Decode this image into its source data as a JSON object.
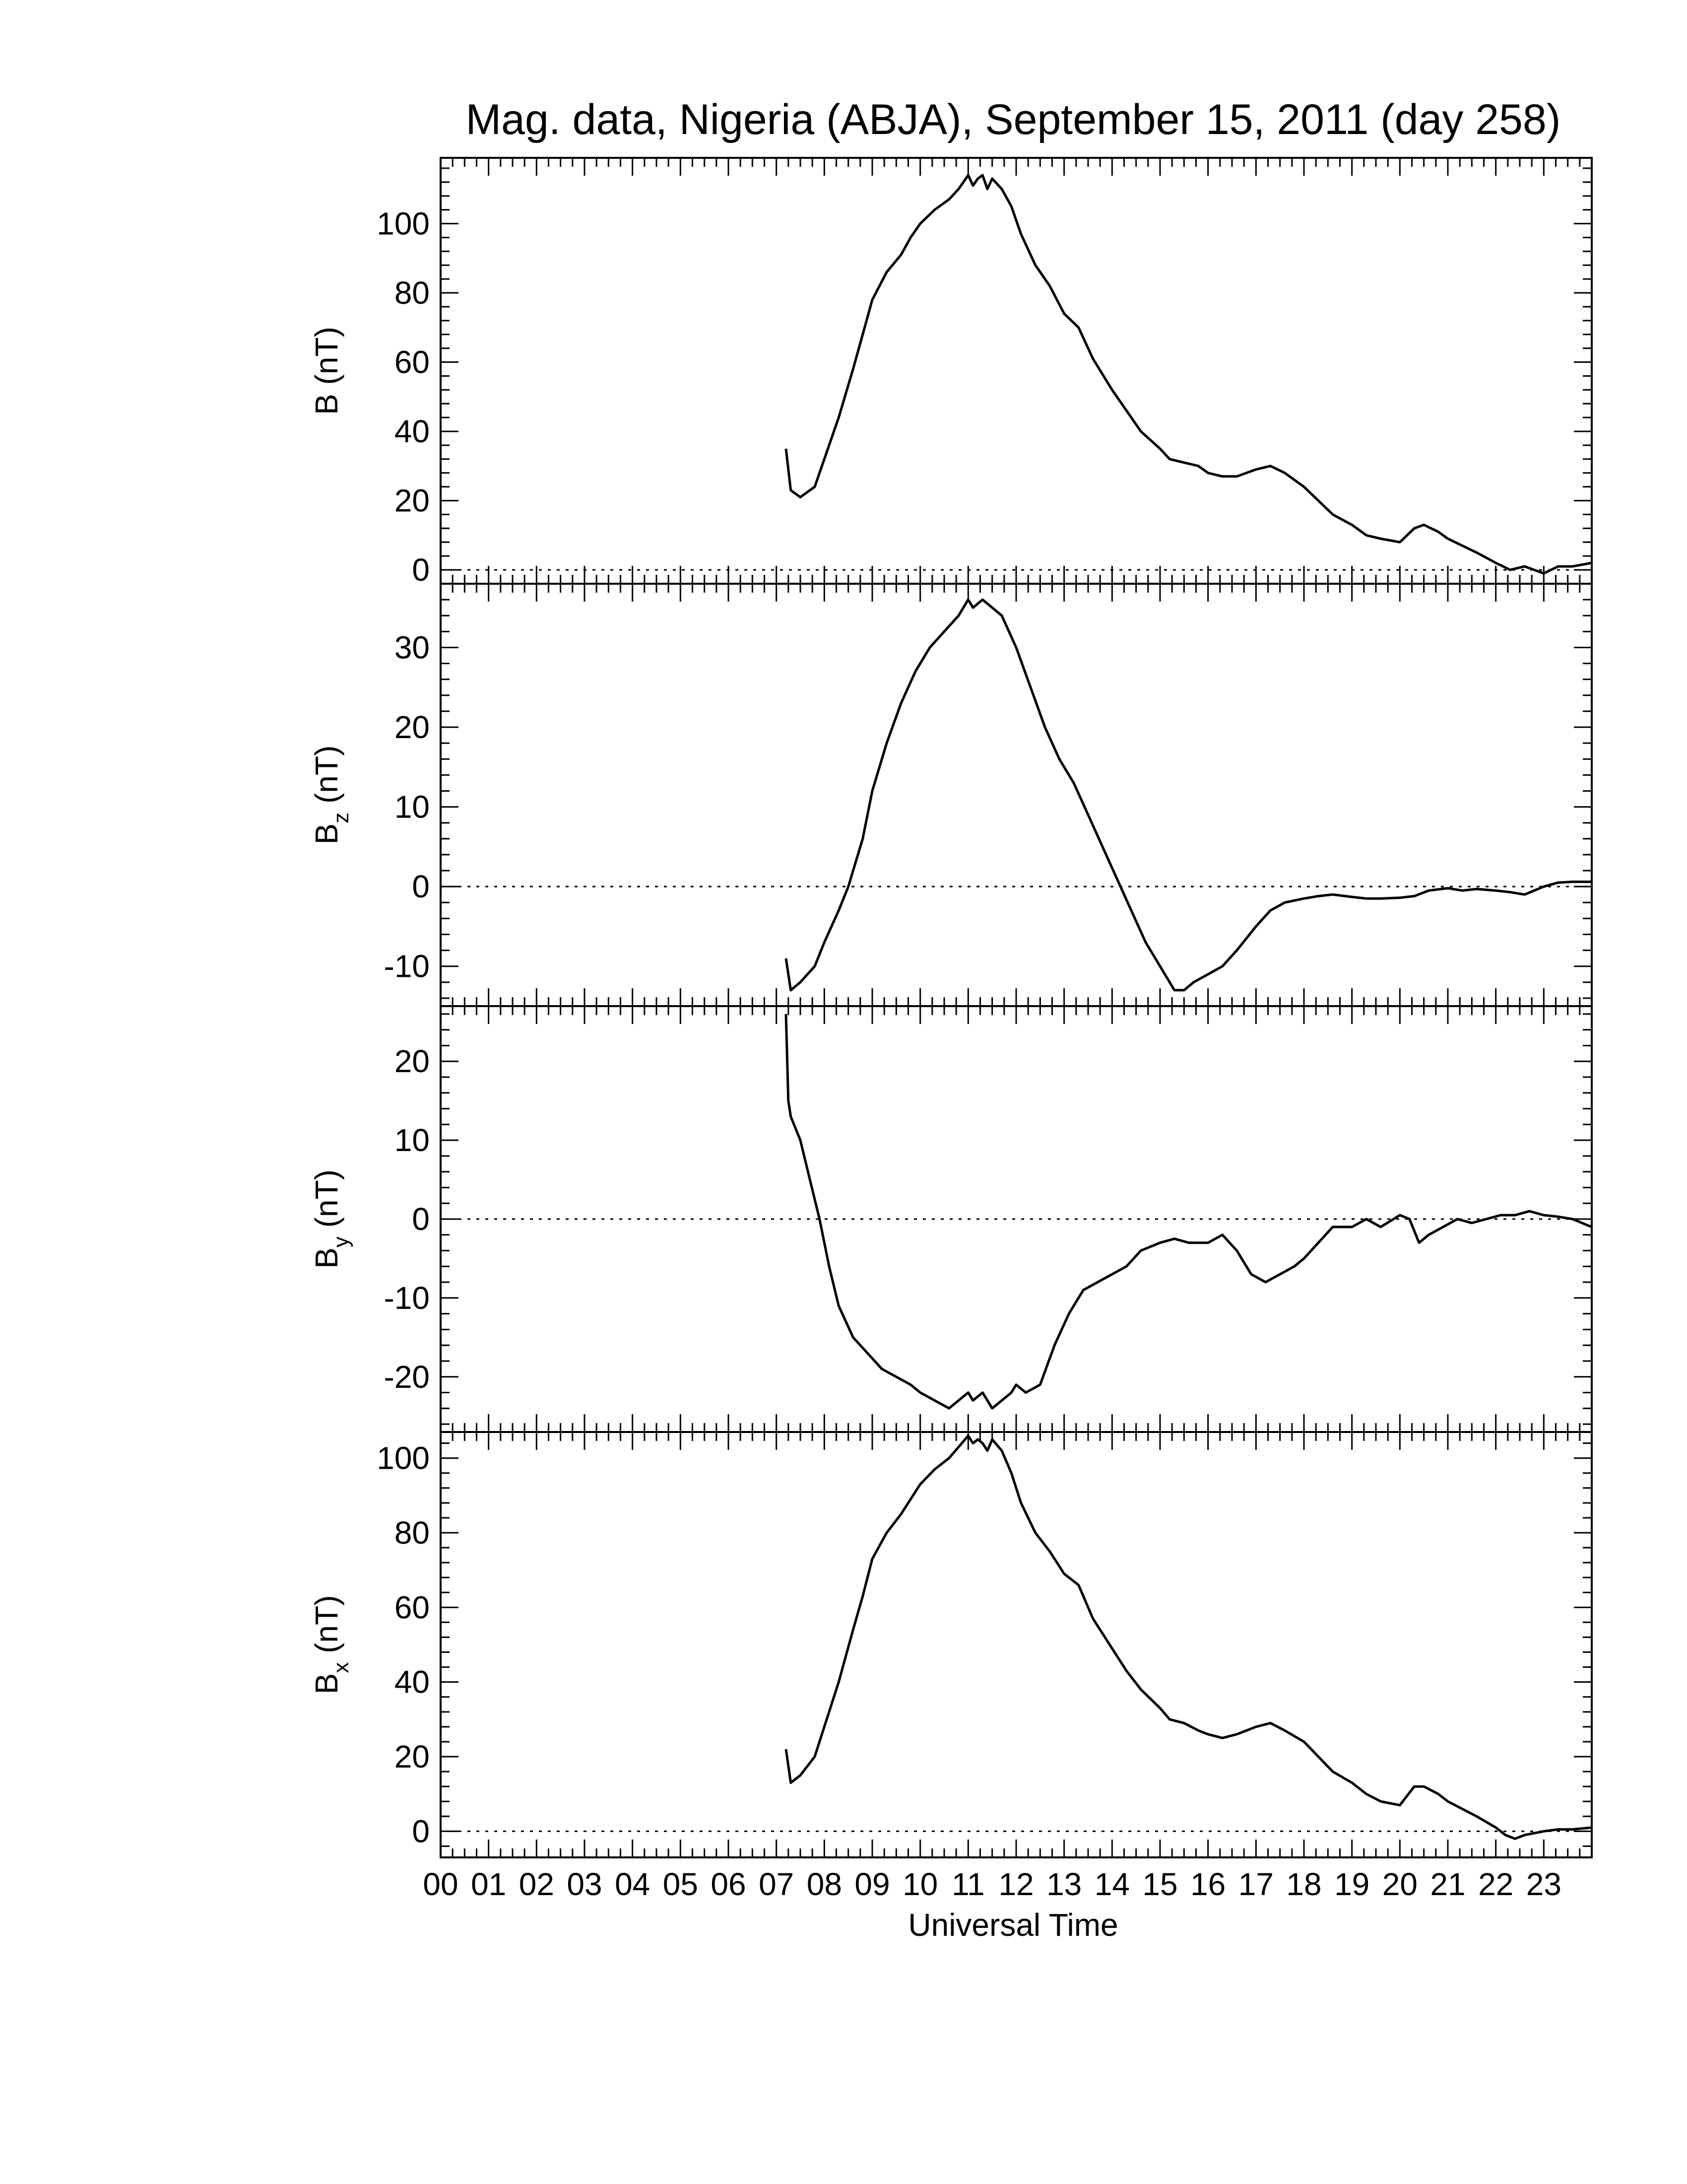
{
  "chart_data": {
    "type": "line",
    "title": "Mag. data, Nigeria (ABJA), September 15, 2011 (day 258)",
    "xlabel": "Universal Time",
    "x_tick_labels": [
      "00",
      "01",
      "02",
      "03",
      "04",
      "05",
      "06",
      "07",
      "08",
      "09",
      "10",
      "11",
      "12",
      "13",
      "14",
      "15",
      "16",
      "17",
      "18",
      "19",
      "20",
      "21",
      "22",
      "23"
    ],
    "xlim": [
      0,
      24
    ],
    "x_unit": "hours UT",
    "zero_line": "dotted",
    "line_color": "#000000",
    "panels": [
      {
        "ylabel_main": "B (nT)",
        "ylabel_sub": "",
        "ylim": [
          -4,
          119
        ],
        "y_ticks": [
          0,
          20,
          40,
          60,
          80,
          100
        ],
        "y_tick_labels": [
          "0",
          "20",
          "40",
          "60",
          "80",
          "100"
        ],
        "series": [
          {
            "x": [
              7.2,
              7.3,
              7.5,
              7.8,
              8.0,
              8.3,
              8.6,
              8.8,
              9.0,
              9.3,
              9.6,
              9.8,
              10.0,
              10.3,
              10.6,
              10.8,
              11.0,
              11.1,
              11.2,
              11.3,
              11.4,
              11.5,
              11.7,
              11.9,
              12.1,
              12.4,
              12.7,
              13.0,
              13.3,
              13.6,
              14.0,
              14.3,
              14.6,
              15.0,
              15.2,
              15.5,
              15.8,
              16.0,
              16.3,
              16.6,
              17.0,
              17.3,
              17.6,
              18.0,
              18.3,
              18.6,
              19.0,
              19.3,
              19.6,
              20.0,
              20.3,
              20.5,
              20.8,
              21.0,
              21.3,
              21.6,
              22.0,
              22.3,
              22.6,
              23.0,
              23.3,
              23.6,
              24.0
            ],
            "y": [
              35,
              23,
              21,
              24,
              32,
              44,
              58,
              68,
              78,
              86,
              91,
              96,
              100,
              104,
              107,
              110,
              114,
              111,
              113,
              114,
              110,
              113,
              110,
              105,
              97,
              88,
              82,
              74,
              70,
              61,
              52,
              46,
              40,
              35,
              32,
              31,
              30,
              28,
              27,
              27,
              29,
              30,
              28,
              24,
              20,
              16,
              13,
              10,
              9,
              8,
              12,
              13,
              11,
              9,
              7,
              5,
              2,
              0,
              1,
              -1,
              1,
              1,
              2
            ]
          }
        ]
      },
      {
        "ylabel_main": "B",
        "ylabel_sub": "z",
        "ylabel_unit": " (nT)",
        "ylim": [
          -15,
          38
        ],
        "y_ticks": [
          -10,
          0,
          10,
          20,
          30
        ],
        "y_tick_labels": [
          "-10",
          "0",
          "10",
          "20",
          "30"
        ],
        "series": [
          {
            "x": [
              7.2,
              7.3,
              7.5,
              7.8,
              8.0,
              8.3,
              8.5,
              8.8,
              9.0,
              9.3,
              9.6,
              9.9,
              10.2,
              10.5,
              10.8,
              11.0,
              11.1,
              11.3,
              11.5,
              11.7,
              12.0,
              12.3,
              12.6,
              12.9,
              13.2,
              13.5,
              13.8,
              14.1,
              14.4,
              14.7,
              15.0,
              15.3,
              15.5,
              15.7,
              16.0,
              16.3,
              16.6,
              17.0,
              17.3,
              17.6,
              18.0,
              18.3,
              18.6,
              19.0,
              19.3,
              19.6,
              20.0,
              20.3,
              20.6,
              21.0,
              21.3,
              21.6,
              22.0,
              22.3,
              22.6,
              23.0,
              23.3,
              23.6,
              24.0
            ],
            "y": [
              -9,
              -13,
              -12,
              -10,
              -7,
              -3,
              0,
              6,
              12,
              18,
              23,
              27,
              30,
              32,
              34,
              36,
              35,
              36,
              35,
              34,
              30,
              25,
              20,
              16,
              13,
              9,
              5,
              1,
              -3,
              -7,
              -10,
              -13,
              -13,
              -12,
              -11,
              -10,
              -8,
              -5,
              -3,
              -2,
              -1.5,
              -1.2,
              -1,
              -1.3,
              -1.5,
              -1.5,
              -1.4,
              -1.2,
              -0.5,
              -0.2,
              -0.5,
              -0.3,
              -0.5,
              -0.7,
              -1,
              0,
              0.5,
              0.6,
              0.6
            ]
          }
        ]
      },
      {
        "ylabel_main": "B",
        "ylabel_sub": "y",
        "ylabel_unit": " (nT)",
        "ylim": [
          -27,
          27
        ],
        "y_ticks": [
          -20,
          -10,
          0,
          10,
          20
        ],
        "y_tick_labels": [
          "-20",
          "-10",
          "0",
          "10",
          "20"
        ],
        "series": [
          {
            "x": [
              7.2,
              7.25,
              7.3,
              7.5,
              7.7,
              7.9,
              8.1,
              8.3,
              8.6,
              8.9,
              9.2,
              9.5,
              9.8,
              10.0,
              10.3,
              10.6,
              10.8,
              11.0,
              11.1,
              11.3,
              11.5,
              11.7,
              11.9,
              12.0,
              12.2,
              12.5,
              12.8,
              13.1,
              13.4,
              13.7,
              14.0,
              14.3,
              14.6,
              15.0,
              15.3,
              15.6,
              16.0,
              16.3,
              16.6,
              16.9,
              17.2,
              17.5,
              17.8,
              18.0,
              18.3,
              18.6,
              19.0,
              19.3,
              19.6,
              20.0,
              20.2,
              20.4,
              20.6,
              20.9,
              21.2,
              21.5,
              21.8,
              22.1,
              22.4,
              22.7,
              23.0,
              23.3,
              23.6,
              24.0
            ],
            "y": [
              26,
              15,
              13,
              10,
              5,
              0,
              -6,
              -11,
              -15,
              -17,
              -19,
              -20,
              -21,
              -22,
              -23,
              -24,
              -23,
              -22,
              -23,
              -22,
              -24,
              -23,
              -22,
              -21,
              -22,
              -21,
              -16,
              -12,
              -9,
              -8,
              -7,
              -6,
              -4,
              -3,
              -2.5,
              -3,
              -3,
              -2,
              -4,
              -7,
              -8,
              -7,
              -6,
              -5,
              -3,
              -1,
              -1,
              0,
              -1,
              0.5,
              0,
              -3,
              -2,
              -1,
              0,
              -0.5,
              0,
              0.5,
              0.5,
              1,
              0.5,
              0.3,
              0,
              -1
            ]
          }
        ]
      },
      {
        "ylabel_main": "B",
        "ylabel_sub": "x",
        "ylabel_unit": " (nT)",
        "ylim": [
          -7,
          107
        ],
        "y_ticks": [
          0,
          20,
          40,
          60,
          80,
          100
        ],
        "y_tick_labels": [
          "0",
          "20",
          "40",
          "60",
          "80",
          "100"
        ],
        "series": [
          {
            "x": [
              7.2,
              7.3,
              7.5,
              7.8,
              8.0,
              8.3,
              8.6,
              8.8,
              9.0,
              9.3,
              9.6,
              9.8,
              10.0,
              10.3,
              10.6,
              10.8,
              11.0,
              11.1,
              11.2,
              11.3,
              11.4,
              11.5,
              11.7,
              11.9,
              12.1,
              12.4,
              12.7,
              13.0,
              13.3,
              13.6,
              14.0,
              14.3,
              14.6,
              15.0,
              15.2,
              15.5,
              15.8,
              16.0,
              16.3,
              16.6,
              17.0,
              17.3,
              17.6,
              18.0,
              18.3,
              18.6,
              19.0,
              19.3,
              19.6,
              20.0,
              20.3,
              20.5,
              20.8,
              21.0,
              21.3,
              21.6,
              22.0,
              22.2,
              22.4,
              22.6,
              23.0,
              23.3,
              23.6,
              24.0
            ],
            "y": [
              22,
              13,
              15,
              20,
              28,
              40,
              54,
              63,
              73,
              80,
              85,
              89,
              93,
              97,
              100,
              103,
              106,
              104,
              105,
              104,
              102,
              105,
              102,
              96,
              88,
              80,
              75,
              69,
              66,
              57,
              49,
              43,
              38,
              33,
              30,
              29,
              27,
              26,
              25,
              26,
              28,
              29,
              27,
              24,
              20,
              16,
              13,
              10,
              8,
              7,
              12,
              12,
              10,
              8,
              6,
              4,
              1,
              -1,
              -2,
              -1,
              0,
              0.5,
              0.5,
              1
            ]
          }
        ]
      }
    ]
  }
}
